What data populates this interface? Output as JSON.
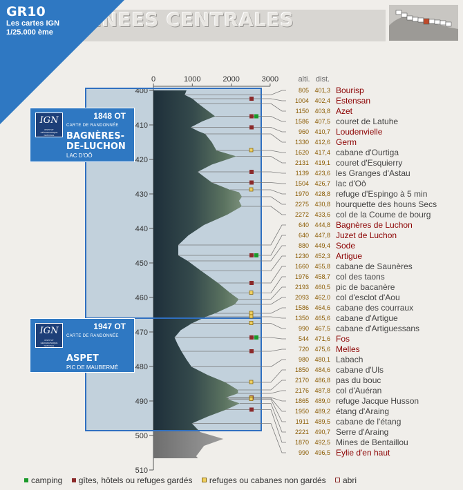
{
  "header": {
    "route": "GR10",
    "subtitle_line1": "Les cartes IGN",
    "subtitle_line2": "1/25.000 ème",
    "title": "ENEES CENTRALES"
  },
  "colors": {
    "corner_blue": "#2f78c2",
    "map_window": "#2f6fc0",
    "camping": "#1a9a2a",
    "gite": "#8b2a2a",
    "refuge": "#f0d060",
    "label_red": "#8b0000",
    "label_gray": "#444444"
  },
  "map_cards": [
    {
      "code": "1848 OT",
      "kind": "CARTE DE RANDONNÉE",
      "name_line1": "BAGNÈRES-",
      "name_line2": "DE-LUCHON",
      "place": "LAC D'OÔ",
      "ign": "IGN"
    },
    {
      "code": "1947 OT",
      "kind": "CARTE DE RANDONNÉE",
      "name_line1": "ASPET",
      "name_line2": "",
      "place": "PIC DE MAUBERMÉ",
      "ign": "IGN"
    }
  ],
  "column_headers": {
    "alt": "alti.",
    "dist": "dist."
  },
  "legend": [
    {
      "key": "camping",
      "label": "camping",
      "color": "#1a9a2a"
    },
    {
      "key": "gite",
      "label": "gîtes, hôtels ou refuges gardés",
      "color": "#8b2a2a"
    },
    {
      "key": "refuge",
      "label": "refuges ou cabanes non gardés",
      "color": "#f0d060"
    },
    {
      "key": "abri",
      "label": "abri",
      "color": "#f0eeea"
    }
  ],
  "chart_data": {
    "type": "area",
    "orientation": "vertical",
    "x_ticks": [
      0,
      1000,
      2000,
      3000
    ],
    "xlim": [
      0,
      3000
    ],
    "y_ticks": [
      400,
      410,
      420,
      430,
      440,
      450,
      460,
      470,
      480,
      490,
      500,
      510
    ],
    "ylim": [
      400,
      510
    ],
    "profile": [
      [
        400,
        850
      ],
      [
        401.3,
        805
      ],
      [
        402.4,
        1004
      ],
      [
        403.8,
        1150
      ],
      [
        405.5,
        1350
      ],
      [
        407.5,
        1586
      ],
      [
        409,
        1250
      ],
      [
        410.7,
        960
      ],
      [
        411.8,
        1150
      ],
      [
        412.6,
        1330
      ],
      [
        415,
        1500
      ],
      [
        417.4,
        1620
      ],
      [
        419.1,
        2131
      ],
      [
        421.5,
        1500
      ],
      [
        423.6,
        1139
      ],
      [
        425,
        1300
      ],
      [
        426.7,
        1504
      ],
      [
        428.8,
        1970
      ],
      [
        429.5,
        2200
      ],
      [
        430.8,
        2275
      ],
      [
        432,
        2200
      ],
      [
        433.6,
        2272
      ],
      [
        436,
        1900
      ],
      [
        439,
        1300
      ],
      [
        442,
        900
      ],
      [
        444.8,
        640
      ],
      [
        446,
        640
      ],
      [
        447.8,
        640
      ],
      [
        449.4,
        880
      ],
      [
        452.3,
        1230
      ],
      [
        455.8,
        1660
      ],
      [
        458.7,
        1976
      ],
      [
        460.5,
        2193
      ],
      [
        462,
        2093
      ],
      [
        464.6,
        1586
      ],
      [
        465.6,
        1350
      ],
      [
        467.5,
        990
      ],
      [
        469.5,
        700
      ],
      [
        471.6,
        544
      ],
      [
        473.5,
        620
      ],
      [
        475.6,
        720
      ],
      [
        478,
        850
      ],
      [
        480.1,
        980
      ],
      [
        482.5,
        1400
      ],
      [
        484.6,
        1850
      ],
      [
        486.8,
        2170
      ],
      [
        487.8,
        2176
      ],
      [
        489,
        1865
      ],
      [
        489.2,
        1950
      ],
      [
        489.5,
        1911
      ],
      [
        490.7,
        2221
      ],
      [
        492.5,
        1870
      ],
      [
        494.5,
        1400
      ],
      [
        496.5,
        990
      ],
      [
        499,
        1200
      ],
      [
        501,
        1800
      ],
      [
        503,
        1300
      ],
      [
        506,
        1100
      ],
      [
        508,
        1250
      ],
      [
        510,
        1000
      ]
    ],
    "waypoints": [
      {
        "alt": "805",
        "dist": "401,3",
        "name": "Bourisp",
        "hl": true,
        "icons": []
      },
      {
        "alt": "1004",
        "dist": "402,4",
        "name": "Estensan",
        "hl": true,
        "icons": [
          "gite"
        ]
      },
      {
        "alt": "1150",
        "dist": "403,8",
        "name": "Azet",
        "hl": true,
        "icons": []
      },
      {
        "alt": "1586",
        "dist": "407,5",
        "name": "couret de Latuhe",
        "hl": false,
        "icons": [
          "gite",
          "camping"
        ]
      },
      {
        "alt": "960",
        "dist": "410,7",
        "name": "Loudenvielle",
        "hl": true,
        "icons": [
          "gite"
        ]
      },
      {
        "alt": "1330",
        "dist": "412,6",
        "name": "Germ",
        "hl": true,
        "icons": []
      },
      {
        "alt": "1620",
        "dist": "417,4",
        "name": "cabane d'Ourtiga",
        "hl": false,
        "icons": [
          "refuge"
        ]
      },
      {
        "alt": "2131",
        "dist": "419,1",
        "name": "couret d'Esquierry",
        "hl": false,
        "icons": []
      },
      {
        "alt": "1139",
        "dist": "423,6",
        "name": "les Granges d'Astau",
        "hl": false,
        "icons": [
          "gite"
        ]
      },
      {
        "alt": "1504",
        "dist": "426,7",
        "name": "lac d'Oô",
        "hl": false,
        "icons": [
          "gite"
        ]
      },
      {
        "alt": "1970",
        "dist": "428,8",
        "name": "refuge d'Espingo à 5 min",
        "hl": false,
        "icons": [
          "refuge"
        ]
      },
      {
        "alt": "2275",
        "dist": "430,8",
        "name": "hourquette des houns Secs",
        "hl": false,
        "icons": []
      },
      {
        "alt": "2272",
        "dist": "433,6",
        "name": "col de la Coume de bourg",
        "hl": false,
        "icons": []
      },
      {
        "alt": "640",
        "dist": "444,8",
        "name": "Bagnères de Luchon",
        "hl": true,
        "icons": []
      },
      {
        "alt": "640",
        "dist": "447,8",
        "name": "Juzet de Luchon",
        "hl": true,
        "icons": [
          "gite",
          "camping"
        ]
      },
      {
        "alt": "880",
        "dist": "449,4",
        "name": "Sode",
        "hl": true,
        "icons": []
      },
      {
        "alt": "1230",
        "dist": "452,3",
        "name": "Artigue",
        "hl": true,
        "icons": []
      },
      {
        "alt": "1660",
        "dist": "455,8",
        "name": "cabane de Saunères",
        "hl": false,
        "icons": [
          "gite"
        ]
      },
      {
        "alt": "1976",
        "dist": "458,7",
        "name": "col des taons",
        "hl": false,
        "icons": [
          "refuge"
        ]
      },
      {
        "alt": "2193",
        "dist": "460,5",
        "name": "pic de bacanère",
        "hl": false,
        "icons": []
      },
      {
        "alt": "2093",
        "dist": "462,0",
        "name": "col d'esclot d'Aou",
        "hl": false,
        "icons": []
      },
      {
        "alt": "1586",
        "dist": "464,6",
        "name": "cabane des courraux",
        "hl": false,
        "icons": [
          "refuge"
        ]
      },
      {
        "alt": "1350",
        "dist": "465,6",
        "name": "cabane d'Artigue",
        "hl": false,
        "icons": [
          "refuge"
        ]
      },
      {
        "alt": "990",
        "dist": "467,5",
        "name": "cabane d'Artiguessans",
        "hl": false,
        "icons": [
          "refuge"
        ]
      },
      {
        "alt": "544",
        "dist": "471,6",
        "name": "Fos",
        "hl": true,
        "icons": [
          "gite",
          "camping"
        ]
      },
      {
        "alt": "720",
        "dist": "475,6",
        "name": "Melles",
        "hl": true,
        "icons": [
          "gite"
        ]
      },
      {
        "alt": "980",
        "dist": "480,1",
        "name": "Labach",
        "hl": false,
        "icons": []
      },
      {
        "alt": "1850",
        "dist": "484,6",
        "name": "cabane d'Uls",
        "hl": false,
        "icons": [
          "refuge"
        ]
      },
      {
        "alt": "2170",
        "dist": "486,8",
        "name": "pas du bouc",
        "hl": false,
        "icons": []
      },
      {
        "alt": "2176",
        "dist": "487,8",
        "name": "col d'Auéran",
        "hl": false,
        "icons": []
      },
      {
        "alt": "1865",
        "dist": "489,0",
        "name": "refuge Jacque Husson",
        "hl": false,
        "icons": [
          "gite"
        ]
      },
      {
        "alt": "1950",
        "dist": "489,2",
        "name": "étang d'Araing",
        "hl": false,
        "icons": [
          "refuge"
        ]
      },
      {
        "alt": "1911",
        "dist": "489,5",
        "name": "cabane de l'étang",
        "hl": false,
        "icons": [
          "refuge"
        ]
      },
      {
        "alt": "2221",
        "dist": "490,7",
        "name": "Serre d'Araing",
        "hl": false,
        "icons": []
      },
      {
        "alt": "1870",
        "dist": "492,5",
        "name": "Mines de Bentaillou",
        "hl": false,
        "icons": [
          "gite"
        ]
      },
      {
        "alt": "990",
        "dist": "496,5",
        "name": "Eylie d'en haut",
        "hl": true,
        "icons": []
      }
    ]
  }
}
